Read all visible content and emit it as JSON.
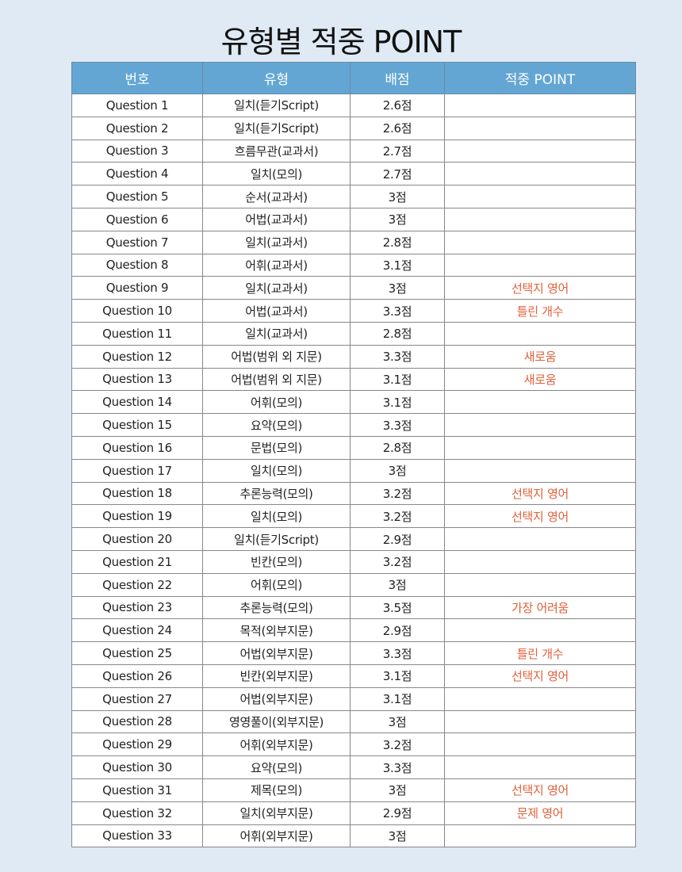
{
  "title": "유형별 적중 POINT",
  "colors": {
    "header_bg": "#63a6d4",
    "point_text": "#e2603a",
    "page_bg": "#dfeaf5"
  },
  "table": {
    "headers": [
      "번호",
      "유형",
      "배점",
      "적중 POINT"
    ],
    "rows": [
      [
        "Question 1",
        "일치(듣기Script)",
        "2.6점",
        ""
      ],
      [
        "Question 2",
        "일치(듣기Script)",
        "2.6점",
        ""
      ],
      [
        "Question 3",
        "흐름무관(교과서)",
        "2.7점",
        ""
      ],
      [
        "Question 4",
        "일치(모의)",
        "2.7점",
        ""
      ],
      [
        "Question 5",
        "순서(교과서)",
        "3점",
        ""
      ],
      [
        "Question 6",
        "어법(교과서)",
        "3점",
        ""
      ],
      [
        "Question 7",
        "일치(교과서)",
        "2.8점",
        ""
      ],
      [
        "Question 8",
        "어휘(교과서)",
        "3.1점",
        ""
      ],
      [
        "Question 9",
        "일치(교과서)",
        "3점",
        "선택지 영어"
      ],
      [
        "Question 10",
        "어법(교과서)",
        "3.3점",
        "틀린 개수"
      ],
      [
        "Question 11",
        "일치(교과서)",
        "2.8점",
        ""
      ],
      [
        "Question 12",
        "어법(범위 외 지문)",
        "3.3점",
        "새로움"
      ],
      [
        "Question 13",
        "어법(범위 외 지문)",
        "3.1점",
        "새로움"
      ],
      [
        "Question 14",
        "어휘(모의)",
        "3.1점",
        ""
      ],
      [
        "Question 15",
        "요약(모의)",
        "3.3점",
        ""
      ],
      [
        "Question 16",
        "문법(모의)",
        "2.8점",
        ""
      ],
      [
        "Question 17",
        "일치(모의)",
        "3점",
        ""
      ],
      [
        "Question 18",
        "추론능력(모의)",
        "3.2점",
        "선택지 영어"
      ],
      [
        "Question 19",
        "일치(모의)",
        "3.2점",
        "선택지 영어"
      ],
      [
        "Question 20",
        "일치(듣기Script)",
        "2.9점",
        ""
      ],
      [
        "Question 21",
        "빈칸(모의)",
        "3.2점",
        ""
      ],
      [
        "Question 22",
        "어휘(모의)",
        "3점",
        ""
      ],
      [
        "Question 23",
        "추론능력(모의)",
        "3.5점",
        "가장 어려움"
      ],
      [
        "Question 24",
        "목적(외부지문)",
        "2.9점",
        ""
      ],
      [
        "Question 25",
        "어법(외부지문)",
        "3.3점",
        "틀린 개수"
      ],
      [
        "Question 26",
        "빈칸(외부지문)",
        "3.1점",
        "선택지 영어"
      ],
      [
        "Question 27",
        "어법(외부지문)",
        "3.1점",
        ""
      ],
      [
        "Question 28",
        "영영풀이(외부지문)",
        "3점",
        ""
      ],
      [
        "Question 29",
        "어휘(외부지문)",
        "3.2점",
        ""
      ],
      [
        "Question 30",
        "요약(모의)",
        "3.3점",
        ""
      ],
      [
        "Question 31",
        "제목(모의)",
        "3점",
        "선택지 영어"
      ],
      [
        "Question 32",
        "일치(외부지문)",
        "2.9점",
        "문제 영어"
      ],
      [
        "Question 33",
        "어휘(외부지문)",
        "3점",
        ""
      ]
    ]
  }
}
